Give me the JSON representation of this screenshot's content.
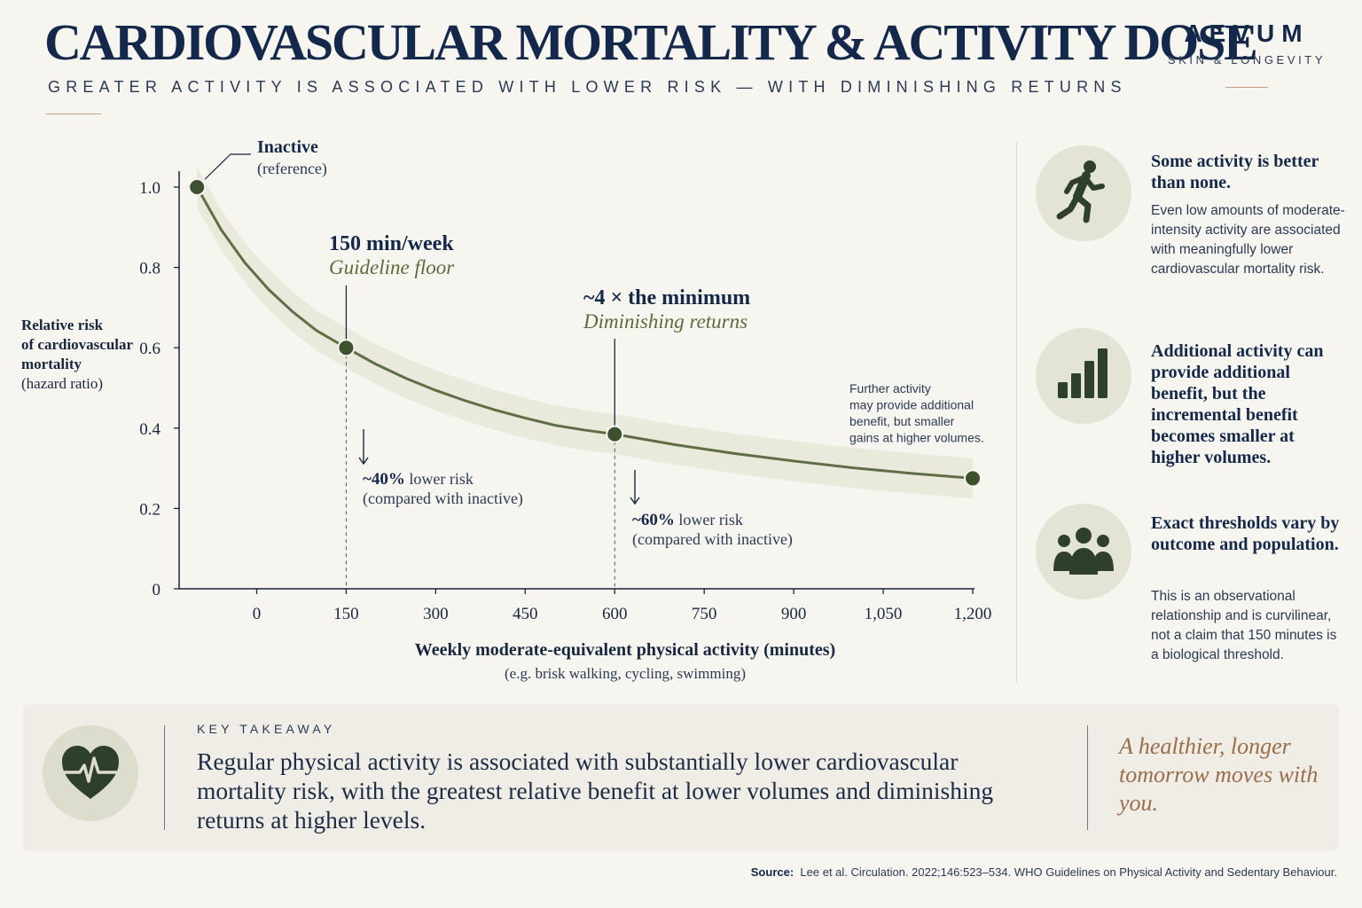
{
  "header": {
    "title": "CARDIOVASCULAR MORTALITY & ACTIVITY DOSE",
    "subtitle": "GREATER ACTIVITY IS ASSOCIATED WITH LOWER RISK — WITH DIMINISHING RETURNS"
  },
  "brand": {
    "name": "AEVUM",
    "tagline": "SKIN & LONGEVITY"
  },
  "colors": {
    "curve": "#5f6e44",
    "band": "#e6e8d8",
    "navy": "#13284a",
    "accent": "#9b6e4a",
    "olive_text": "#5a6b3c"
  },
  "chart_data": {
    "type": "line",
    "xlabel": "Weekly moderate-equivalent physical activity (minutes)",
    "xlabel_note": "(e.g. brisk walking, cycling, swimming)",
    "ylabel": {
      "line1": "Relative risk",
      "line2": "of cardiovascular",
      "line3": "mortality",
      "line4": "(hazard ratio)"
    },
    "x_ticks": [
      0,
      150,
      300,
      450,
      600,
      750,
      900,
      1050,
      1200
    ],
    "x_tick_labels": [
      "0",
      "150",
      "300",
      "450",
      "600",
      "750",
      "900",
      "1,050",
      "1,200"
    ],
    "y_ticks": [
      0,
      0.2,
      0.4,
      0.6,
      0.8,
      1.0
    ],
    "y_tick_labels": [
      "0",
      "0.2",
      "0.4",
      "0.6",
      "0.8",
      "1.0"
    ],
    "xlim": [
      -130,
      1200
    ],
    "ylim": [
      0,
      1.0
    ],
    "grid": false,
    "series": [
      {
        "x": [
          -100,
          -60,
          -20,
          20,
          60,
          100,
          150,
          200,
          250,
          300,
          350,
          400,
          450,
          500,
          550,
          600,
          700,
          800,
          900,
          1000,
          1100,
          1200
        ],
        "y": [
          1.0,
          0.895,
          0.812,
          0.745,
          0.69,
          0.643,
          0.6,
          0.559,
          0.524,
          0.494,
          0.468,
          0.445,
          0.425,
          0.407,
          0.395,
          0.385,
          0.359,
          0.337,
          0.318,
          0.301,
          0.287,
          0.275
        ],
        "band_width": 0.05
      }
    ],
    "points": [
      {
        "label": "Inactive",
        "x": -100,
        "y": 1.0
      },
      {
        "label": "150 min/week",
        "x": 150,
        "y": 0.6
      },
      {
        "label": "~4 × the minimum",
        "x": 600,
        "y": 0.385
      },
      {
        "label": "",
        "x": 1200,
        "y": 0.275
      }
    ],
    "annotations": {
      "inactive_title": "Inactive",
      "inactive_sub": "(reference)",
      "guideline_title": "150 min/week",
      "guideline_sub": "Guideline floor",
      "four_x_title": "~4 × the minimum",
      "four_x_sub": "Diminishing returns",
      "forty_bold": "~40%",
      "forty_rest": " lower risk",
      "forty_sub": "(compared with inactive)",
      "sixty_bold": "~60%",
      "sixty_rest": " lower risk",
      "sixty_sub": "(compared with inactive)",
      "further_1": "Further activity",
      "further_2": "may provide additional",
      "further_3": "benefit, but smaller",
      "further_4": "gains at higher volumes."
    }
  },
  "side_panels": [
    {
      "icon": "runner-icon",
      "heading": "Some activity is better than none.",
      "body": "Even low amounts of moderate-intensity activity are associated with meaningfully lower cardiovascular mortality risk."
    },
    {
      "icon": "bar-chart-icon",
      "heading": "Additional activity can provide additional benefit, but the incremental benefit becomes smaller at higher volumes.",
      "body": ""
    },
    {
      "icon": "people-icon",
      "heading": "Exact thresholds vary by outcome and population.",
      "body": "This is an observational relationship and is curvilinear, not a claim that 150 minutes is a biological threshold."
    }
  ],
  "takeaway": {
    "icon": "heart-pulse-icon",
    "label": "KEY TAKEAWAY",
    "text": "Regular physical activity is associated with substantially lower cardiovascular mortality risk, with the greatest relative benefit at lower volumes and diminishing returns at higher levels.",
    "tagline": "A healthier, longer tomorrow moves with you."
  },
  "source": {
    "label": "Source:",
    "text": "Lee et al. Circulation. 2022;146:523–534. WHO Guidelines on Physical Activity and Sedentary Behaviour."
  }
}
